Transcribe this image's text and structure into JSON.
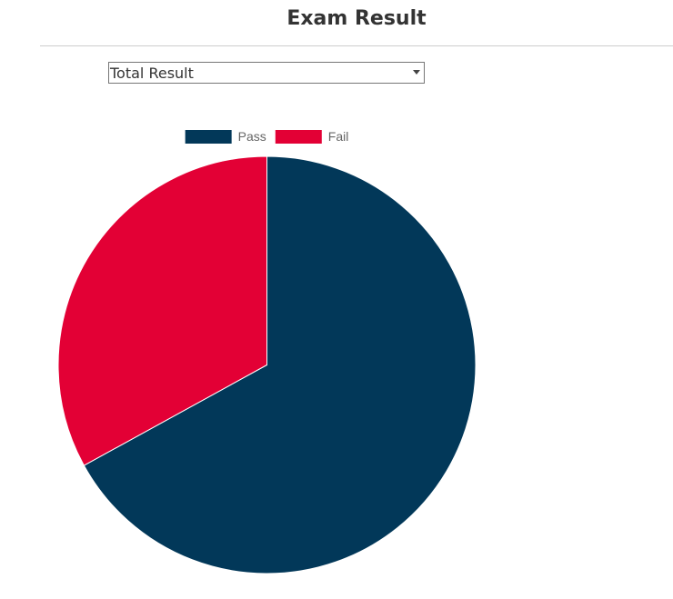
{
  "header": {
    "title": "Exam Result"
  },
  "filter": {
    "selected": "Total Result"
  },
  "colors": {
    "pass": "#023859",
    "fail": "#E30035"
  },
  "chart_data": {
    "type": "pie",
    "categories": [
      "Pass",
      "Fail"
    ],
    "values": [
      67,
      33
    ],
    "legend_position": "top"
  }
}
